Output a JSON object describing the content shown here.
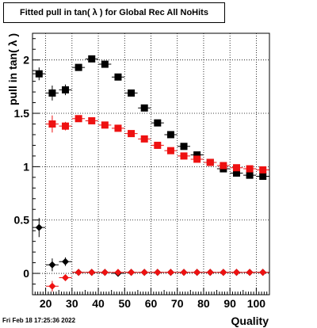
{
  "title": "Fitted pull in tan( λ ) for Global Rec All NoHits",
  "footer": "Fri Feb 18 17:25:36 2022",
  "chart_data": {
    "type": "scatter",
    "title": "Fitted pull in tan( λ ) for Global Rec All NoHits",
    "xlabel": "Quality",
    "ylabel": "pull in tan( λ )",
    "xlim": [
      15,
      105
    ],
    "ylim": [
      -0.2,
      2.25
    ],
    "xticks": [
      20,
      30,
      40,
      50,
      60,
      70,
      80,
      90,
      100
    ],
    "yticks": [
      0,
      0.5,
      1,
      1.5,
      2
    ],
    "xtick_labels": [
      "20",
      "30",
      "40",
      "50",
      "60",
      "70",
      "80",
      "90",
      "100"
    ],
    "ytick_labels": [
      "0",
      "0.5",
      "1",
      "1.5",
      "2"
    ],
    "grid": true,
    "series": [
      {
        "marker": "square",
        "color": "#000000",
        "x": [
          17.5,
          22.5,
          27.5,
          32.5,
          37.5,
          42.5,
          47.5,
          52.5,
          57.5,
          62.5,
          67.5,
          72.5,
          77.5,
          82.5,
          87.5,
          92.5,
          97.5,
          102.5
        ],
        "y": [
          1.87,
          1.69,
          1.72,
          1.93,
          2.01,
          1.96,
          1.84,
          1.69,
          1.55,
          1.41,
          1.3,
          1.19,
          1.11,
          1.04,
          0.98,
          0.94,
          0.92,
          0.91
        ],
        "yerr": [
          0.06,
          0.07,
          0.05,
          0.03,
          0.02,
          0.02,
          0.02,
          0.02,
          0.02,
          0.02,
          0.02,
          0.02,
          0.01,
          0.01,
          0.01,
          0.01,
          0.01,
          0.01
        ]
      },
      {
        "marker": "square",
        "color": "#ee1111",
        "x": [
          22.5,
          27.5,
          32.5,
          37.5,
          42.5,
          47.5,
          52.5,
          57.5,
          62.5,
          67.5,
          72.5,
          77.5,
          82.5,
          87.5,
          92.5,
          97.5,
          102.5
        ],
        "y": [
          1.4,
          1.38,
          1.45,
          1.43,
          1.39,
          1.36,
          1.31,
          1.26,
          1.2,
          1.15,
          1.1,
          1.07,
          1.04,
          1.01,
          0.99,
          0.98,
          0.97
        ],
        "yerr": [
          0.08,
          0.04,
          0.02,
          0.02,
          0.02,
          0.02,
          0.02,
          0.02,
          0.01,
          0.01,
          0.01,
          0.01,
          0.01,
          0.01,
          0.01,
          0.01,
          0.01
        ]
      },
      {
        "marker": "diamond",
        "color": "#000000",
        "x": [
          17.5,
          22.5,
          27.5,
          32.5,
          37.5,
          42.5,
          47.5,
          52.5,
          57.5,
          62.5,
          67.5,
          72.5,
          77.5,
          82.5,
          87.5,
          92.5,
          97.5,
          102.5
        ],
        "y": [
          0.43,
          0.08,
          0.11,
          0.01,
          0.01,
          0.01,
          0.0,
          0.01,
          0.01,
          0.01,
          0.01,
          0.01,
          0.01,
          0.01,
          0.01,
          0.01,
          0.01,
          0.01
        ],
        "yerr": [
          0.09,
          0.06,
          0.04,
          0.02,
          0.01,
          0.01,
          0.01,
          0.01,
          0.01,
          0.01,
          0.01,
          0.01,
          0.01,
          0.01,
          0.01,
          0.01,
          0.01,
          0.01
        ]
      },
      {
        "marker": "diamond",
        "color": "#ee1111",
        "x": [
          22.5,
          27.5,
          32.5,
          37.5,
          42.5,
          47.5,
          52.5,
          57.5,
          62.5,
          67.5,
          72.5,
          77.5,
          82.5,
          87.5,
          92.5,
          97.5,
          102.5
        ],
        "y": [
          -0.12,
          -0.04,
          0.01,
          0.01,
          0.01,
          0.01,
          0.01,
          0.01,
          0.01,
          0.01,
          0.01,
          0.01,
          0.01,
          0.01,
          0.01,
          0.01,
          0.01
        ],
        "yerr": [
          0.05,
          0.03,
          0.01,
          0.01,
          0.01,
          0.01,
          0.01,
          0.01,
          0.01,
          0.01,
          0.01,
          0.01,
          0.01,
          0.01,
          0.01,
          0.01,
          0.01
        ]
      }
    ]
  }
}
